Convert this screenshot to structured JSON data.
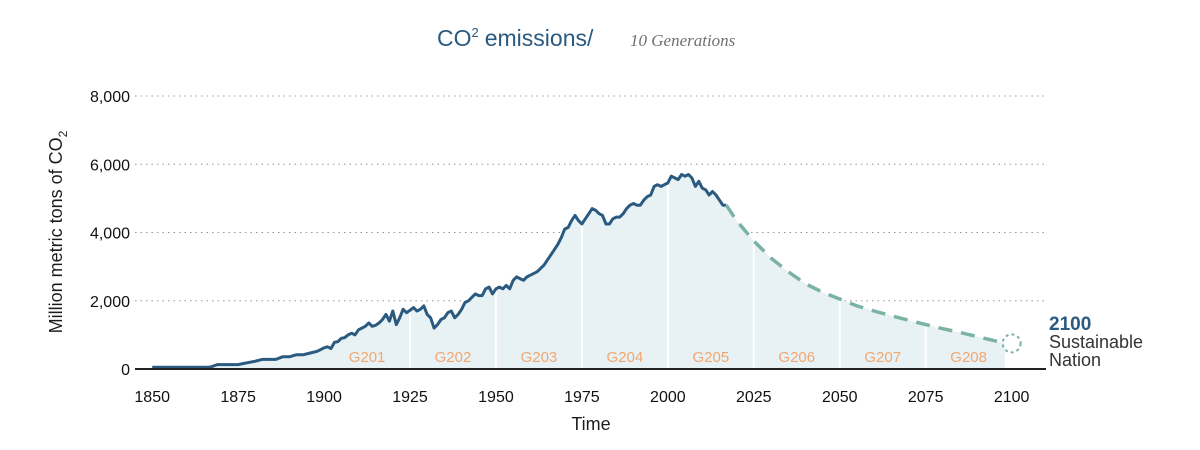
{
  "chart_data": {
    "type": "area",
    "title": "CO2 emissions/",
    "title_base": "CO",
    "title_sup": "2",
    "title_rest": "emissions/",
    "subtitle": "10 Generations",
    "xlabel": "Time",
    "ylabel_main": "Million metric tons of CO",
    "ylabel_sub": "2",
    "ylabel": "Million metric tons of CO2",
    "xlim": [
      1845,
      2110
    ],
    "ylim": [
      0,
      8000
    ],
    "x_ticks": [
      "1850",
      "1875",
      "1900",
      "1925",
      "1950",
      "1975",
      "2000",
      "2025",
      "2050",
      "2075",
      "2100"
    ],
    "y_ticks": [
      "0",
      "2,000",
      "4,000",
      "6,000",
      "8,000"
    ],
    "grid": "horizontal dotted",
    "colors": {
      "historical_line": "#2a5a80",
      "projection_line": "#7ab3a3",
      "area_fill": "#e8f1f4",
      "generation_label": "#f0a870"
    },
    "series": [
      {
        "name": "historical",
        "style": "solid",
        "x": [
          1850,
          1855,
          1860,
          1866,
          1867,
          1869,
          1875,
          1876,
          1880,
          1882,
          1886,
          1888,
          1890,
          1892,
          1894,
          1896,
          1898,
          1900,
          1901,
          1902,
          1903,
          1904,
          1905,
          1906,
          1907,
          1908,
          1909,
          1910,
          1911,
          1912,
          1913,
          1914,
          1915,
          1916,
          1917,
          1918,
          1919,
          1920,
          1921,
          1922,
          1923,
          1924,
          1925,
          1926,
          1927,
          1928,
          1929,
          1930,
          1931,
          1932,
          1933,
          1934,
          1935,
          1936,
          1937,
          1938,
          1939,
          1940,
          1941,
          1942,
          1943,
          1944,
          1945,
          1946,
          1947,
          1948,
          1949,
          1950,
          1951,
          1952,
          1953,
          1954,
          1955,
          1956,
          1957,
          1958,
          1959,
          1960,
          1961,
          1962,
          1963,
          1964,
          1965,
          1966,
          1967,
          1968,
          1969,
          1970,
          1971,
          1972,
          1973,
          1974,
          1975,
          1976,
          1977,
          1978,
          1979,
          1980,
          1981,
          1982,
          1983,
          1984,
          1985,
          1986,
          1987,
          1988,
          1989,
          1990,
          1991,
          1992,
          1993,
          1994,
          1995,
          1996,
          1997,
          1998,
          1999,
          2000,
          2001,
          2002,
          2003,
          2004,
          2005,
          2006,
          2007,
          2008,
          2009,
          2010,
          2011,
          2012,
          2013,
          2014,
          2015,
          2016,
          2017
        ],
        "values": [
          50,
          50,
          50,
          50,
          60,
          130,
          130,
          150,
          230,
          280,
          280,
          360,
          360,
          420,
          420,
          470,
          520,
          620,
          650,
          600,
          780,
          800,
          900,
          920,
          1000,
          1050,
          1000,
          1150,
          1200,
          1250,
          1350,
          1250,
          1280,
          1350,
          1450,
          1600,
          1400,
          1700,
          1300,
          1500,
          1750,
          1650,
          1720,
          1800,
          1700,
          1750,
          1850,
          1600,
          1500,
          1200,
          1300,
          1450,
          1500,
          1650,
          1700,
          1500,
          1600,
          1750,
          1950,
          2000,
          2100,
          2200,
          2150,
          2150,
          2350,
          2400,
          2200,
          2350,
          2400,
          2350,
          2450,
          2350,
          2600,
          2700,
          2650,
          2600,
          2700,
          2750,
          2800,
          2850,
          2950,
          3050,
          3200,
          3350,
          3500,
          3650,
          3850,
          4100,
          4150,
          4350,
          4500,
          4350,
          4250,
          4400,
          4550,
          4700,
          4650,
          4550,
          4500,
          4250,
          4250,
          4400,
          4450,
          4450,
          4550,
          4700,
          4800,
          4850,
          4800,
          4800,
          4950,
          5050,
          5100,
          5350,
          5400,
          5350,
          5400,
          5450,
          5650,
          5600,
          5550,
          5700,
          5650,
          5700,
          5600,
          5350,
          5500,
          5300,
          5250,
          5100,
          5200,
          5100,
          4950,
          4800,
          4800
        ]
      },
      {
        "name": "projection",
        "style": "dashed",
        "x": [
          2017,
          2020,
          2025,
          2030,
          2035,
          2040,
          2045,
          2050,
          2055,
          2060,
          2065,
          2070,
          2075,
          2080,
          2085,
          2090,
          2095,
          2098
        ],
        "values": [
          4800,
          4350,
          3750,
          3250,
          2850,
          2500,
          2250,
          2050,
          1850,
          1700,
          1560,
          1430,
          1300,
          1180,
          1070,
          950,
          830,
          760
        ]
      }
    ],
    "generations": [
      {
        "label": "G201",
        "start": 1900,
        "end": 1925
      },
      {
        "label": "G202",
        "start": 1925,
        "end": 1950
      },
      {
        "label": "G203",
        "start": 1950,
        "end": 1975
      },
      {
        "label": "G204",
        "start": 1975,
        "end": 2000
      },
      {
        "label": "G205",
        "start": 2000,
        "end": 2025
      },
      {
        "label": "G206",
        "start": 2025,
        "end": 2050
      },
      {
        "label": "G207",
        "start": 2050,
        "end": 2075
      },
      {
        "label": "G208",
        "start": 2075,
        "end": 2100
      }
    ],
    "endpoint": {
      "x": 2100,
      "y": 750,
      "year_label": "2100",
      "line1": "Sustainable",
      "line2": "Nation"
    }
  }
}
